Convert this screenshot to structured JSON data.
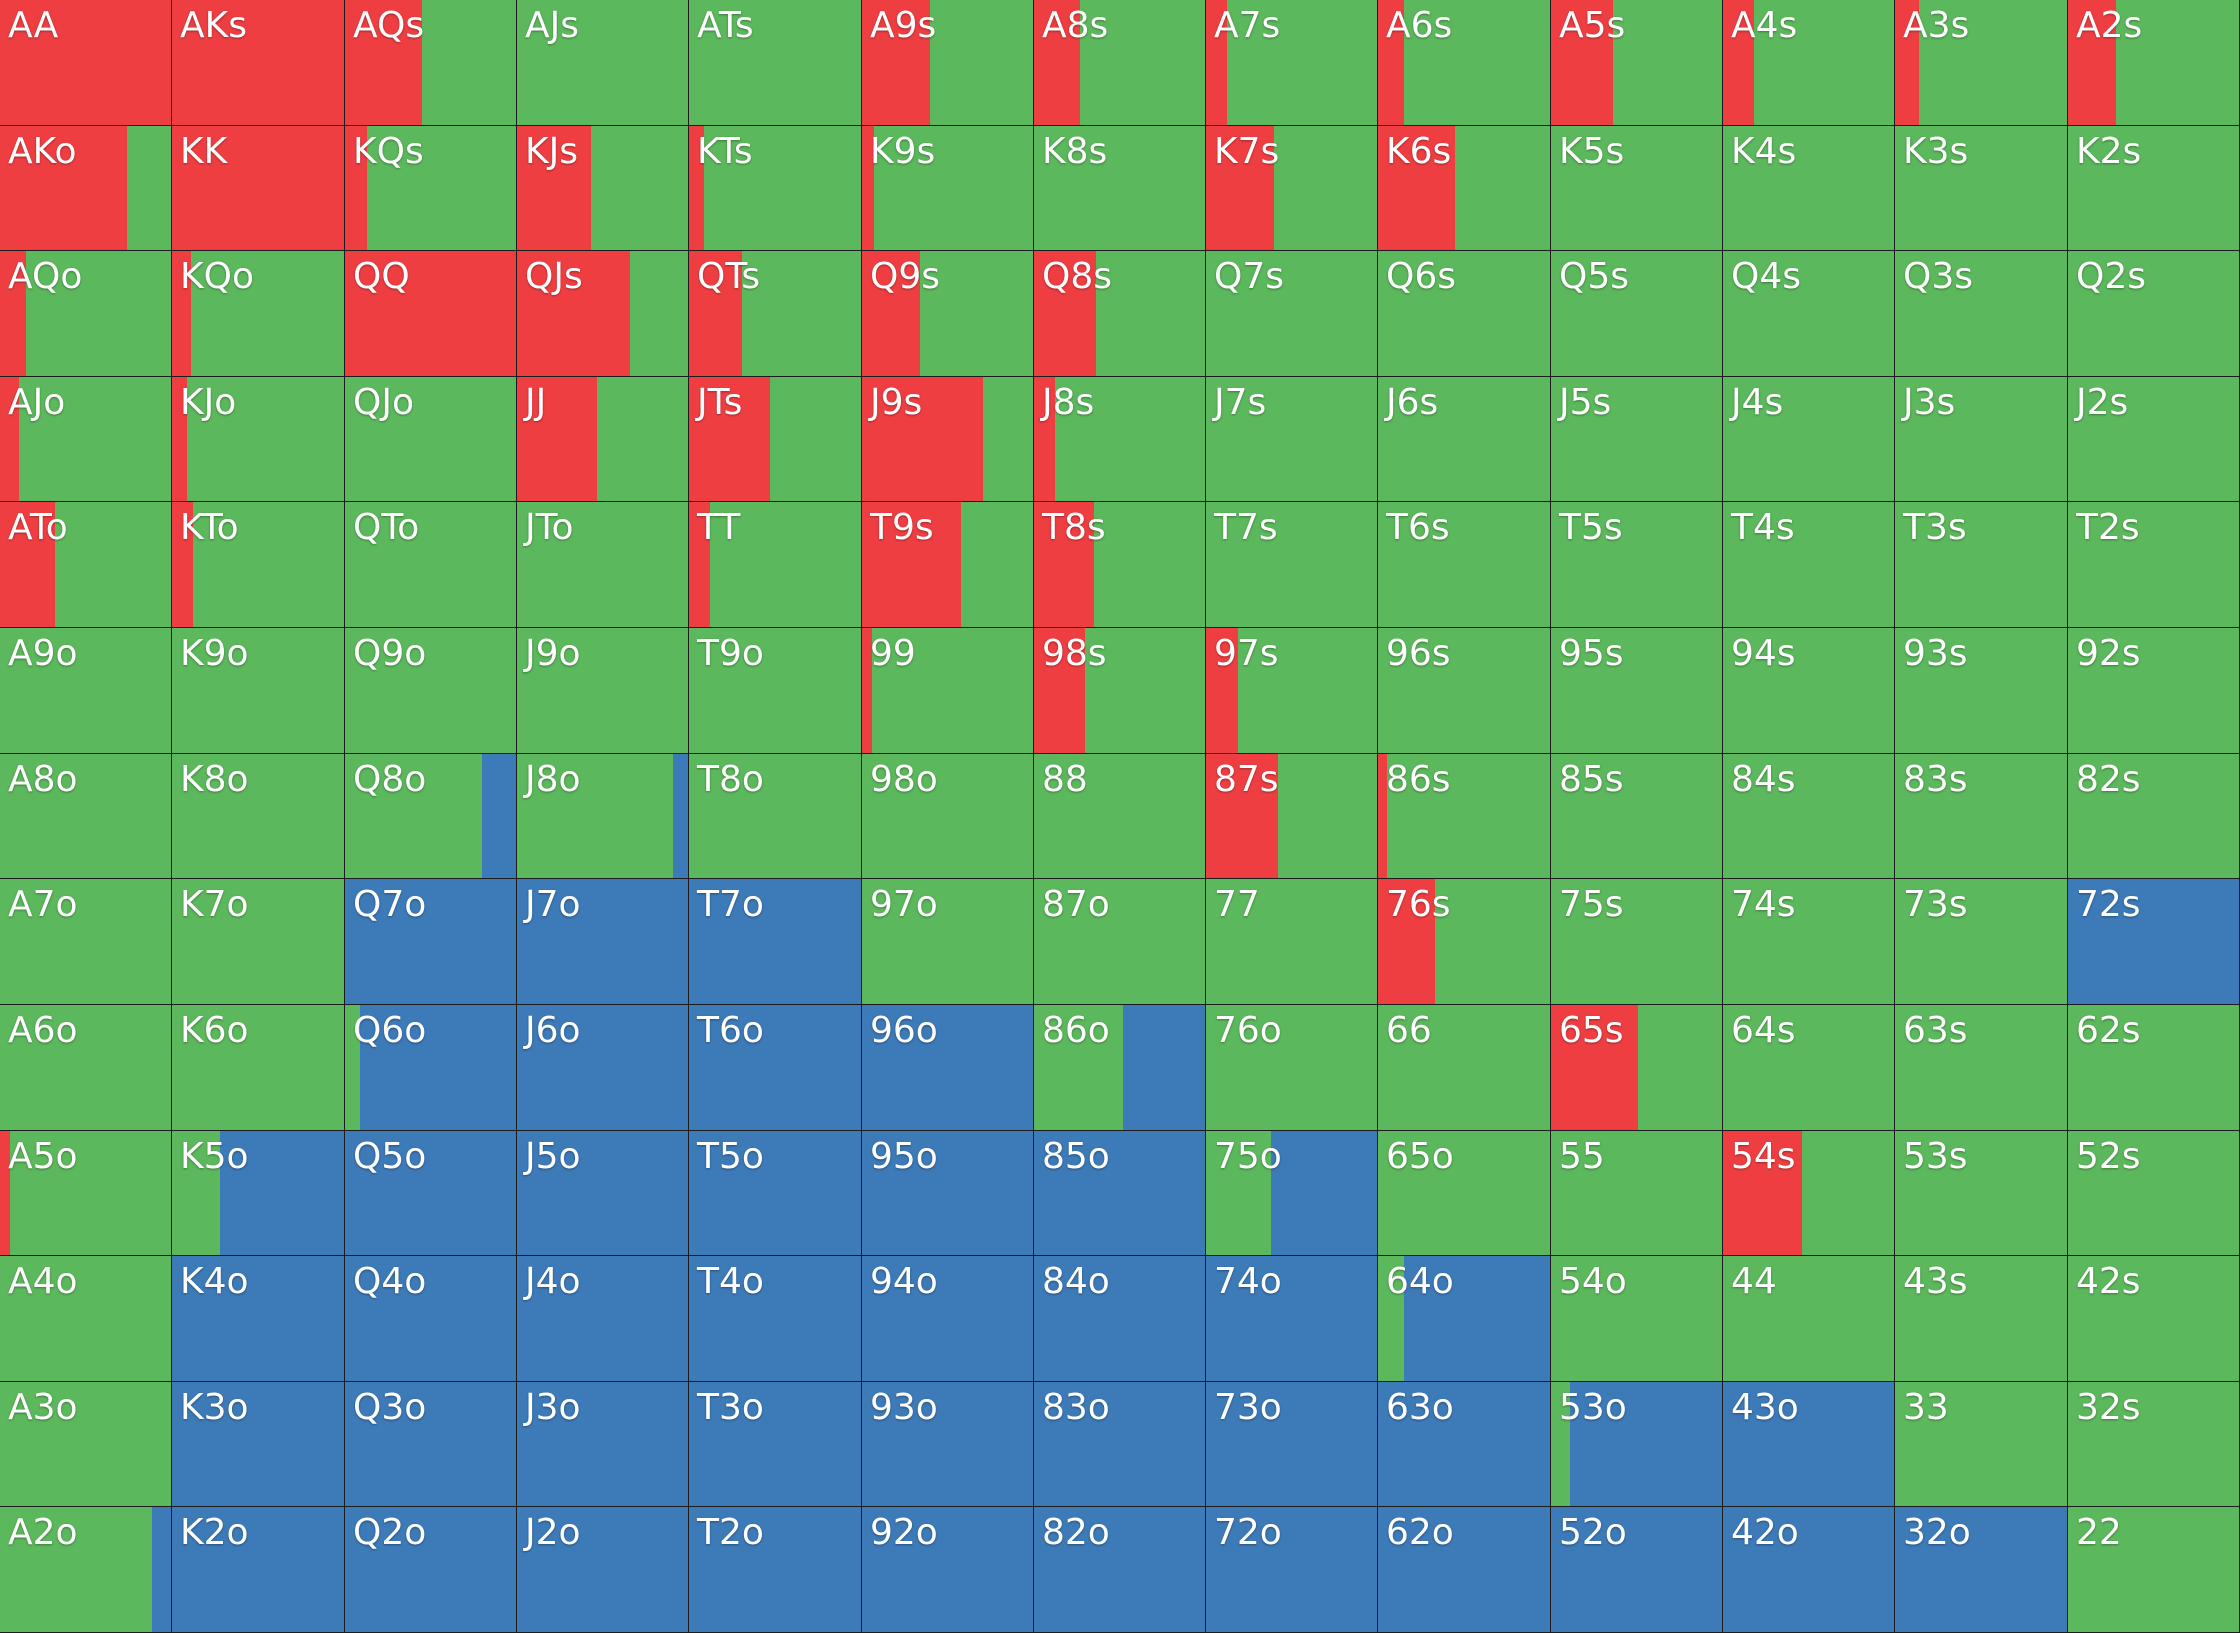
{
  "colors": {
    "raise": "#ef3e42",
    "call": "#5cb85c",
    "fold": "#3d7ab8"
  },
  "action_order": [
    "raise",
    "call",
    "fold"
  ],
  "ranks": [
    "A",
    "K",
    "Q",
    "J",
    "T",
    "9",
    "8",
    "7",
    "6",
    "5",
    "4",
    "3",
    "2"
  ],
  "rows": [
    [
      {
        "label": "AA",
        "raise": 1.0,
        "call": 0.0,
        "fold": 0.0
      },
      {
        "label": "AKs",
        "raise": 1.0,
        "call": 0.0,
        "fold": 0.0
      },
      {
        "label": "AQs",
        "raise": 0.45,
        "call": 0.55,
        "fold": 0.0
      },
      {
        "label": "AJs",
        "raise": 0.0,
        "call": 1.0,
        "fold": 0.0
      },
      {
        "label": "ATs",
        "raise": 0.0,
        "call": 1.0,
        "fold": 0.0
      },
      {
        "label": "A9s",
        "raise": 0.4,
        "call": 0.6,
        "fold": 0.0
      },
      {
        "label": "A8s",
        "raise": 0.27,
        "call": 0.73,
        "fold": 0.0
      },
      {
        "label": "A7s",
        "raise": 0.12,
        "call": 0.88,
        "fold": 0.0
      },
      {
        "label": "A6s",
        "raise": 0.15,
        "call": 0.85,
        "fold": 0.0
      },
      {
        "label": "A5s",
        "raise": 0.36,
        "call": 0.64,
        "fold": 0.0
      },
      {
        "label": "A4s",
        "raise": 0.18,
        "call": 0.82,
        "fold": 0.0
      },
      {
        "label": "A3s",
        "raise": 0.14,
        "call": 0.86,
        "fold": 0.0
      },
      {
        "label": "A2s",
        "raise": 0.28,
        "call": 0.72,
        "fold": 0.0
      }
    ],
    [
      {
        "label": "AKo",
        "raise": 0.74,
        "call": 0.26,
        "fold": 0.0
      },
      {
        "label": "KK",
        "raise": 1.0,
        "call": 0.0,
        "fold": 0.0
      },
      {
        "label": "KQs",
        "raise": 0.13,
        "call": 0.87,
        "fold": 0.0
      },
      {
        "label": "KJs",
        "raise": 0.43,
        "call": 0.57,
        "fold": 0.0
      },
      {
        "label": "KTs",
        "raise": 0.09,
        "call": 0.91,
        "fold": 0.0
      },
      {
        "label": "K9s",
        "raise": 0.07,
        "call": 0.93,
        "fold": 0.0
      },
      {
        "label": "K8s",
        "raise": 0.0,
        "call": 1.0,
        "fold": 0.0
      },
      {
        "label": "K7s",
        "raise": 0.4,
        "call": 0.6,
        "fold": 0.0
      },
      {
        "label": "K6s",
        "raise": 0.45,
        "call": 0.55,
        "fold": 0.0
      },
      {
        "label": "K5s",
        "raise": 0.0,
        "call": 1.0,
        "fold": 0.0
      },
      {
        "label": "K4s",
        "raise": 0.0,
        "call": 1.0,
        "fold": 0.0
      },
      {
        "label": "K3s",
        "raise": 0.0,
        "call": 1.0,
        "fold": 0.0
      },
      {
        "label": "K2s",
        "raise": 0.0,
        "call": 1.0,
        "fold": 0.0
      }
    ],
    [
      {
        "label": "AQo",
        "raise": 0.15,
        "call": 0.85,
        "fold": 0.0
      },
      {
        "label": "KQo",
        "raise": 0.11,
        "call": 0.89,
        "fold": 0.0
      },
      {
        "label": "QQ",
        "raise": 1.0,
        "call": 0.0,
        "fold": 0.0
      },
      {
        "label": "QJs",
        "raise": 0.66,
        "call": 0.34,
        "fold": 0.0
      },
      {
        "label": "QTs",
        "raise": 0.31,
        "call": 0.69,
        "fold": 0.0
      },
      {
        "label": "Q9s",
        "raise": 0.34,
        "call": 0.66,
        "fold": 0.0
      },
      {
        "label": "Q8s",
        "raise": 0.36,
        "call": 0.64,
        "fold": 0.0
      },
      {
        "label": "Q7s",
        "raise": 0.0,
        "call": 1.0,
        "fold": 0.0
      },
      {
        "label": "Q6s",
        "raise": 0.0,
        "call": 1.0,
        "fold": 0.0
      },
      {
        "label": "Q5s",
        "raise": 0.0,
        "call": 1.0,
        "fold": 0.0
      },
      {
        "label": "Q4s",
        "raise": 0.0,
        "call": 1.0,
        "fold": 0.0
      },
      {
        "label": "Q3s",
        "raise": 0.0,
        "call": 1.0,
        "fold": 0.0
      },
      {
        "label": "Q2s",
        "raise": 0.0,
        "call": 1.0,
        "fold": 0.0
      }
    ],
    [
      {
        "label": "AJo",
        "raise": 0.11,
        "call": 0.89,
        "fold": 0.0
      },
      {
        "label": "KJo",
        "raise": 0.09,
        "call": 0.91,
        "fold": 0.0
      },
      {
        "label": "QJo",
        "raise": 0.0,
        "call": 1.0,
        "fold": 0.0
      },
      {
        "label": "JJ",
        "raise": 0.47,
        "call": 0.53,
        "fold": 0.0
      },
      {
        "label": "JTs",
        "raise": 0.47,
        "call": 0.53,
        "fold": 0.0
      },
      {
        "label": "J9s",
        "raise": 0.71,
        "call": 0.29,
        "fold": 0.0
      },
      {
        "label": "J8s",
        "raise": 0.12,
        "call": 0.88,
        "fold": 0.0
      },
      {
        "label": "J7s",
        "raise": 0.0,
        "call": 1.0,
        "fold": 0.0
      },
      {
        "label": "J6s",
        "raise": 0.0,
        "call": 1.0,
        "fold": 0.0
      },
      {
        "label": "J5s",
        "raise": 0.0,
        "call": 1.0,
        "fold": 0.0
      },
      {
        "label": "J4s",
        "raise": 0.0,
        "call": 1.0,
        "fold": 0.0
      },
      {
        "label": "J3s",
        "raise": 0.0,
        "call": 1.0,
        "fold": 0.0
      },
      {
        "label": "J2s",
        "raise": 0.0,
        "call": 1.0,
        "fold": 0.0
      }
    ],
    [
      {
        "label": "ATo",
        "raise": 0.32,
        "call": 0.68,
        "fold": 0.0
      },
      {
        "label": "KTo",
        "raise": 0.12,
        "call": 0.88,
        "fold": 0.0
      },
      {
        "label": "QTo",
        "raise": 0.0,
        "call": 1.0,
        "fold": 0.0
      },
      {
        "label": "JTo",
        "raise": 0.0,
        "call": 1.0,
        "fold": 0.0
      },
      {
        "label": "TT",
        "raise": 0.12,
        "call": 0.88,
        "fold": 0.0
      },
      {
        "label": "T9s",
        "raise": 0.58,
        "call": 0.42,
        "fold": 0.0
      },
      {
        "label": "T8s",
        "raise": 0.35,
        "call": 0.65,
        "fold": 0.0
      },
      {
        "label": "T7s",
        "raise": 0.0,
        "call": 1.0,
        "fold": 0.0
      },
      {
        "label": "T6s",
        "raise": 0.0,
        "call": 1.0,
        "fold": 0.0
      },
      {
        "label": "T5s",
        "raise": 0.0,
        "call": 1.0,
        "fold": 0.0
      },
      {
        "label": "T4s",
        "raise": 0.0,
        "call": 1.0,
        "fold": 0.0
      },
      {
        "label": "T3s",
        "raise": 0.0,
        "call": 1.0,
        "fold": 0.0
      },
      {
        "label": "T2s",
        "raise": 0.0,
        "call": 1.0,
        "fold": 0.0
      }
    ],
    [
      {
        "label": "A9o",
        "raise": 0.0,
        "call": 1.0,
        "fold": 0.0
      },
      {
        "label": "K9o",
        "raise": 0.0,
        "call": 1.0,
        "fold": 0.0
      },
      {
        "label": "Q9o",
        "raise": 0.0,
        "call": 1.0,
        "fold": 0.0
      },
      {
        "label": "J9o",
        "raise": 0.0,
        "call": 1.0,
        "fold": 0.0
      },
      {
        "label": "T9o",
        "raise": 0.0,
        "call": 1.0,
        "fold": 0.0
      },
      {
        "label": "99",
        "raise": 0.06,
        "call": 0.94,
        "fold": 0.0
      },
      {
        "label": "98s",
        "raise": 0.3,
        "call": 0.7,
        "fold": 0.0
      },
      {
        "label": "97s",
        "raise": 0.19,
        "call": 0.81,
        "fold": 0.0
      },
      {
        "label": "96s",
        "raise": 0.0,
        "call": 1.0,
        "fold": 0.0
      },
      {
        "label": "95s",
        "raise": 0.0,
        "call": 1.0,
        "fold": 0.0
      },
      {
        "label": "94s",
        "raise": 0.0,
        "call": 1.0,
        "fold": 0.0
      },
      {
        "label": "93s",
        "raise": 0.0,
        "call": 1.0,
        "fold": 0.0
      },
      {
        "label": "92s",
        "raise": 0.0,
        "call": 1.0,
        "fold": 0.0
      }
    ],
    [
      {
        "label": "A8o",
        "raise": 0.0,
        "call": 1.0,
        "fold": 0.0
      },
      {
        "label": "K8o",
        "raise": 0.0,
        "call": 1.0,
        "fold": 0.0
      },
      {
        "label": "Q8o",
        "raise": 0.0,
        "call": 0.8,
        "fold": 0.2
      },
      {
        "label": "J8o",
        "raise": 0.0,
        "call": 0.91,
        "fold": 0.09
      },
      {
        "label": "T8o",
        "raise": 0.0,
        "call": 1.0,
        "fold": 0.0
      },
      {
        "label": "98o",
        "raise": 0.0,
        "call": 1.0,
        "fold": 0.0
      },
      {
        "label": "88",
        "raise": 0.0,
        "call": 1.0,
        "fold": 0.0
      },
      {
        "label": "87s",
        "raise": 0.42,
        "call": 0.58,
        "fold": 0.0
      },
      {
        "label": "86s",
        "raise": 0.05,
        "call": 0.95,
        "fold": 0.0
      },
      {
        "label": "85s",
        "raise": 0.0,
        "call": 1.0,
        "fold": 0.0
      },
      {
        "label": "84s",
        "raise": 0.0,
        "call": 1.0,
        "fold": 0.0
      },
      {
        "label": "83s",
        "raise": 0.0,
        "call": 1.0,
        "fold": 0.0
      },
      {
        "label": "82s",
        "raise": 0.0,
        "call": 1.0,
        "fold": 0.0
      }
    ],
    [
      {
        "label": "A7o",
        "raise": 0.0,
        "call": 1.0,
        "fold": 0.0
      },
      {
        "label": "K7o",
        "raise": 0.0,
        "call": 1.0,
        "fold": 0.0
      },
      {
        "label": "Q7o",
        "raise": 0.0,
        "call": 0.0,
        "fold": 1.0
      },
      {
        "label": "J7o",
        "raise": 0.0,
        "call": 0.0,
        "fold": 1.0
      },
      {
        "label": "T7o",
        "raise": 0.0,
        "call": 0.0,
        "fold": 1.0
      },
      {
        "label": "97o",
        "raise": 0.0,
        "call": 1.0,
        "fold": 0.0
      },
      {
        "label": "87o",
        "raise": 0.0,
        "call": 1.0,
        "fold": 0.0
      },
      {
        "label": "77",
        "raise": 0.0,
        "call": 1.0,
        "fold": 0.0
      },
      {
        "label": "76s",
        "raise": 0.33,
        "call": 0.67,
        "fold": 0.0
      },
      {
        "label": "75s",
        "raise": 0.0,
        "call": 1.0,
        "fold": 0.0
      },
      {
        "label": "74s",
        "raise": 0.0,
        "call": 1.0,
        "fold": 0.0
      },
      {
        "label": "73s",
        "raise": 0.0,
        "call": 1.0,
        "fold": 0.0
      },
      {
        "label": "72s",
        "raise": 0.0,
        "call": 0.0,
        "fold": 1.0
      }
    ],
    [
      {
        "label": "A6o",
        "raise": 0.0,
        "call": 1.0,
        "fold": 0.0
      },
      {
        "label": "K6o",
        "raise": 0.0,
        "call": 1.0,
        "fold": 0.0
      },
      {
        "label": "Q6o",
        "raise": 0.0,
        "call": 0.09,
        "fold": 0.91
      },
      {
        "label": "J6o",
        "raise": 0.0,
        "call": 0.0,
        "fold": 1.0
      },
      {
        "label": "T6o",
        "raise": 0.0,
        "call": 0.0,
        "fold": 1.0
      },
      {
        "label": "96o",
        "raise": 0.0,
        "call": 0.0,
        "fold": 1.0
      },
      {
        "label": "86o",
        "raise": 0.0,
        "call": 0.52,
        "fold": 0.48
      },
      {
        "label": "76o",
        "raise": 0.0,
        "call": 1.0,
        "fold": 0.0
      },
      {
        "label": "66",
        "raise": 0.0,
        "call": 1.0,
        "fold": 0.0
      },
      {
        "label": "65s",
        "raise": 0.51,
        "call": 0.49,
        "fold": 0.0
      },
      {
        "label": "64s",
        "raise": 0.0,
        "call": 1.0,
        "fold": 0.0
      },
      {
        "label": "63s",
        "raise": 0.0,
        "call": 1.0,
        "fold": 0.0
      },
      {
        "label": "62s",
        "raise": 0.0,
        "call": 1.0,
        "fold": 0.0
      }
    ],
    [
      {
        "label": "A5o",
        "raise": 0.06,
        "call": 0.94,
        "fold": 0.0
      },
      {
        "label": "K5o",
        "raise": 0.0,
        "call": 0.28,
        "fold": 0.72
      },
      {
        "label": "Q5o",
        "raise": 0.0,
        "call": 0.0,
        "fold": 1.0
      },
      {
        "label": "J5o",
        "raise": 0.0,
        "call": 0.0,
        "fold": 1.0
      },
      {
        "label": "T5o",
        "raise": 0.0,
        "call": 0.0,
        "fold": 1.0
      },
      {
        "label": "95o",
        "raise": 0.0,
        "call": 0.0,
        "fold": 1.0
      },
      {
        "label": "85o",
        "raise": 0.0,
        "call": 0.0,
        "fold": 1.0
      },
      {
        "label": "75o",
        "raise": 0.0,
        "call": 0.38,
        "fold": 0.62
      },
      {
        "label": "65o",
        "raise": 0.0,
        "call": 1.0,
        "fold": 0.0
      },
      {
        "label": "55",
        "raise": 0.0,
        "call": 1.0,
        "fold": 0.0
      },
      {
        "label": "54s",
        "raise": 0.46,
        "call": 0.54,
        "fold": 0.0
      },
      {
        "label": "53s",
        "raise": 0.0,
        "call": 1.0,
        "fold": 0.0
      },
      {
        "label": "52s",
        "raise": 0.0,
        "call": 1.0,
        "fold": 0.0
      }
    ],
    [
      {
        "label": "A4o",
        "raise": 0.0,
        "call": 1.0,
        "fold": 0.0
      },
      {
        "label": "K4o",
        "raise": 0.0,
        "call": 0.0,
        "fold": 1.0
      },
      {
        "label": "Q4o",
        "raise": 0.0,
        "call": 0.0,
        "fold": 1.0
      },
      {
        "label": "J4o",
        "raise": 0.0,
        "call": 0.0,
        "fold": 1.0
      },
      {
        "label": "T4o",
        "raise": 0.0,
        "call": 0.0,
        "fold": 1.0
      },
      {
        "label": "94o",
        "raise": 0.0,
        "call": 0.0,
        "fold": 1.0
      },
      {
        "label": "84o",
        "raise": 0.0,
        "call": 0.0,
        "fold": 1.0
      },
      {
        "label": "74o",
        "raise": 0.0,
        "call": 0.0,
        "fold": 1.0
      },
      {
        "label": "64o",
        "raise": 0.0,
        "call": 0.15,
        "fold": 0.85
      },
      {
        "label": "54o",
        "raise": 0.0,
        "call": 1.0,
        "fold": 0.0
      },
      {
        "label": "44",
        "raise": 0.0,
        "call": 1.0,
        "fold": 0.0
      },
      {
        "label": "43s",
        "raise": 0.0,
        "call": 1.0,
        "fold": 0.0
      },
      {
        "label": "42s",
        "raise": 0.0,
        "call": 1.0,
        "fold": 0.0
      }
    ],
    [
      {
        "label": "A3o",
        "raise": 0.0,
        "call": 1.0,
        "fold": 0.0
      },
      {
        "label": "K3o",
        "raise": 0.0,
        "call": 0.0,
        "fold": 1.0
      },
      {
        "label": "Q3o",
        "raise": 0.0,
        "call": 0.0,
        "fold": 1.0
      },
      {
        "label": "J3o",
        "raise": 0.0,
        "call": 0.0,
        "fold": 1.0
      },
      {
        "label": "T3o",
        "raise": 0.0,
        "call": 0.0,
        "fold": 1.0
      },
      {
        "label": "93o",
        "raise": 0.0,
        "call": 0.0,
        "fold": 1.0
      },
      {
        "label": "83o",
        "raise": 0.0,
        "call": 0.0,
        "fold": 1.0
      },
      {
        "label": "73o",
        "raise": 0.0,
        "call": 0.0,
        "fold": 1.0
      },
      {
        "label": "63o",
        "raise": 0.0,
        "call": 0.0,
        "fold": 1.0
      },
      {
        "label": "53o",
        "raise": 0.0,
        "call": 0.11,
        "fold": 0.89
      },
      {
        "label": "43o",
        "raise": 0.0,
        "call": 0.0,
        "fold": 1.0
      },
      {
        "label": "33",
        "raise": 0.0,
        "call": 1.0,
        "fold": 0.0
      },
      {
        "label": "32s",
        "raise": 0.0,
        "call": 1.0,
        "fold": 0.0
      }
    ],
    [
      {
        "label": "A2o",
        "raise": 0.0,
        "call": 0.89,
        "fold": 0.11
      },
      {
        "label": "K2o",
        "raise": 0.0,
        "call": 0.0,
        "fold": 1.0
      },
      {
        "label": "Q2o",
        "raise": 0.0,
        "call": 0.0,
        "fold": 1.0
      },
      {
        "label": "J2o",
        "raise": 0.0,
        "call": 0.0,
        "fold": 1.0
      },
      {
        "label": "T2o",
        "raise": 0.0,
        "call": 0.0,
        "fold": 1.0
      },
      {
        "label": "92o",
        "raise": 0.0,
        "call": 0.0,
        "fold": 1.0
      },
      {
        "label": "82o",
        "raise": 0.0,
        "call": 0.0,
        "fold": 1.0
      },
      {
        "label": "72o",
        "raise": 0.0,
        "call": 0.0,
        "fold": 1.0
      },
      {
        "label": "62o",
        "raise": 0.0,
        "call": 0.0,
        "fold": 1.0
      },
      {
        "label": "52o",
        "raise": 0.0,
        "call": 0.0,
        "fold": 1.0
      },
      {
        "label": "42o",
        "raise": 0.0,
        "call": 0.0,
        "fold": 1.0
      },
      {
        "label": "32o",
        "raise": 0.0,
        "call": 0.0,
        "fold": 1.0
      },
      {
        "label": "22",
        "raise": 0.0,
        "call": 1.0,
        "fold": 0.0
      }
    ]
  ]
}
